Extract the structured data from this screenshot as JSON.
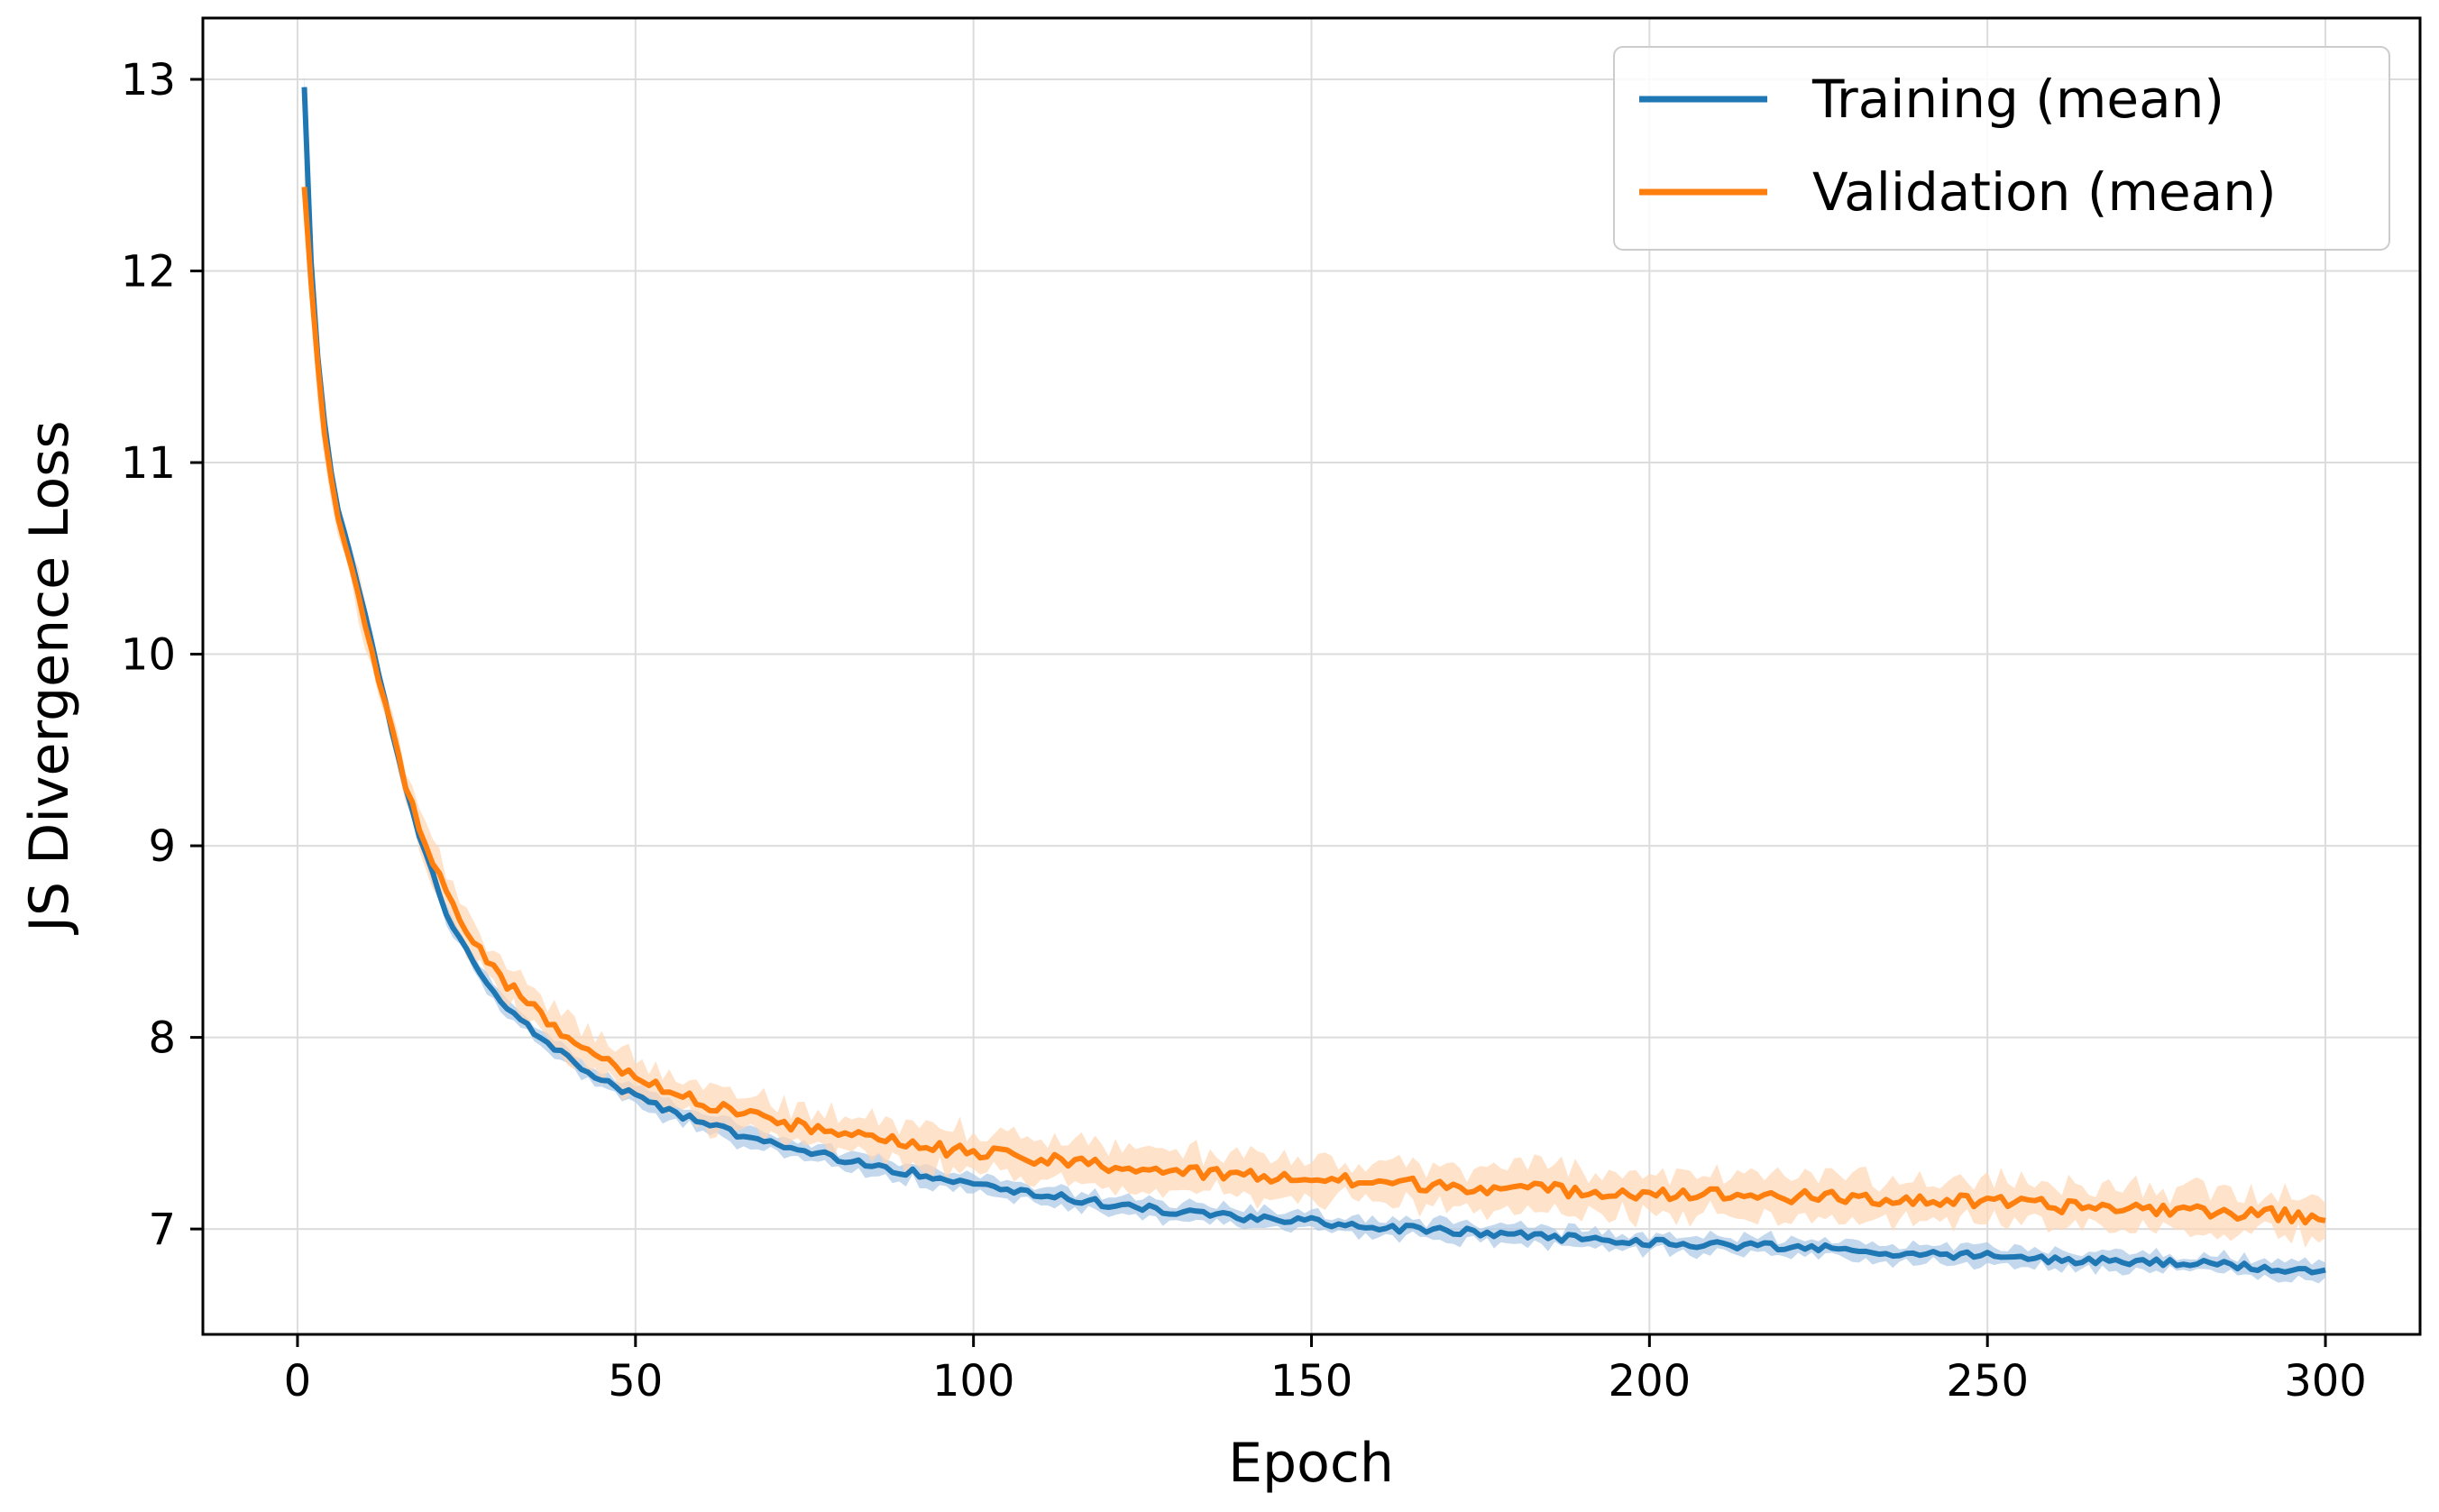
{
  "chart_data": {
    "type": "line",
    "title": "",
    "xlabel": "Epoch",
    "ylabel": "JS Divergence Loss",
    "xlim": [
      -14,
      314
    ],
    "ylim": [
      6.45,
      13.32
    ],
    "xticks": [
      0,
      50,
      100,
      150,
      200,
      250,
      300
    ],
    "yticks": [
      7,
      8,
      9,
      10,
      11,
      12,
      13
    ],
    "grid": true,
    "legend_position": "top-right",
    "x_range": [
      1,
      300
    ],
    "series": [
      {
        "name": "Training (mean)",
        "color": "#1f77b4",
        "band_color": "#a9c8e6",
        "anchors": {
          "x": [
            1,
            2,
            3,
            4,
            5,
            6,
            8,
            10,
            12,
            14,
            16,
            18,
            20,
            22,
            25,
            28,
            30,
            35,
            40,
            45,
            50,
            55,
            60,
            65,
            70,
            75,
            80,
            90,
            100,
            110,
            120,
            130,
            140,
            150,
            160,
            170,
            180,
            190,
            200,
            210,
            220,
            230,
            240,
            250,
            260,
            270,
            280,
            290,
            300
          ],
          "y": [
            12.95,
            12.05,
            11.55,
            11.2,
            10.95,
            10.75,
            10.5,
            10.2,
            9.9,
            9.6,
            9.3,
            9.05,
            8.85,
            8.65,
            8.45,
            8.3,
            8.2,
            8.02,
            7.9,
            7.78,
            7.7,
            7.62,
            7.55,
            7.5,
            7.45,
            7.41,
            7.37,
            7.3,
            7.24,
            7.18,
            7.13,
            7.09,
            7.06,
            7.04,
            7.01,
            6.99,
            6.97,
            6.95,
            6.93,
            6.92,
            6.91,
            6.89,
            6.87,
            6.86,
            6.84,
            6.83,
            6.82,
            6.8,
            6.78
          ]
        },
        "noise": 0.02,
        "band_half_width": 0.04
      },
      {
        "name": "Validation (mean)",
        "color": "#ff7f0e",
        "band_color": "#ffd6b3",
        "anchors": {
          "x": [
            1,
            2,
            3,
            4,
            5,
            6,
            8,
            10,
            12,
            14,
            16,
            18,
            20,
            22,
            25,
            28,
            30,
            35,
            40,
            45,
            50,
            55,
            60,
            65,
            70,
            75,
            80,
            90,
            100,
            110,
            120,
            130,
            140,
            150,
            160,
            170,
            180,
            190,
            200,
            210,
            220,
            230,
            240,
            250,
            260,
            270,
            280,
            290,
            300
          ],
          "y": [
            12.42,
            11.95,
            11.5,
            11.15,
            10.9,
            10.72,
            10.45,
            10.15,
            9.85,
            9.6,
            9.32,
            9.1,
            8.92,
            8.78,
            8.55,
            8.4,
            8.3,
            8.16,
            8.0,
            7.9,
            7.8,
            7.72,
            7.66,
            7.6,
            7.56,
            7.53,
            7.5,
            7.44,
            7.4,
            7.36,
            7.33,
            7.3,
            7.28,
            7.26,
            7.24,
            7.23,
            7.21,
            7.2,
            7.19,
            7.18,
            7.17,
            7.16,
            7.15,
            7.14,
            7.12,
            7.11,
            7.1,
            7.08,
            7.06
          ]
        },
        "noise": 0.035,
        "band_half_width": 0.09
      }
    ],
    "legend": [
      "Training (mean)",
      "Validation (mean)"
    ]
  }
}
